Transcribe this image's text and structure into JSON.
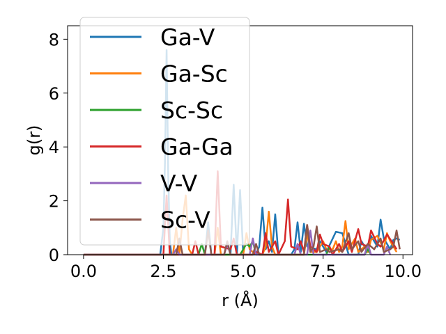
{
  "chart_data": {
    "type": "line",
    "xlabel": "r (Å)",
    "ylabel": "g(r)",
    "xlim": [
      -0.5,
      10.3
    ],
    "ylim": [
      0,
      8.5
    ],
    "xticks": [
      0.0,
      2.5,
      5.0,
      7.5,
      10.0
    ],
    "xtick_labels": [
      "0.0",
      "2.5",
      "5.0",
      "7.5",
      "10.0"
    ],
    "yticks": [
      0,
      2,
      4,
      6,
      8
    ],
    "ytick_labels": [
      "0",
      "2",
      "4",
      "6",
      "8"
    ],
    "grid": false,
    "legend": {
      "placement": "upper-left",
      "framealpha": 0.8
    },
    "series": [
      {
        "name": "Ga-V",
        "color": "#1f77b4",
        "points": [
          [
            0,
            0
          ],
          [
            2.4,
            0
          ],
          [
            2.5,
            1.0
          ],
          [
            2.55,
            3.5
          ],
          [
            2.6,
            7.6
          ],
          [
            2.65,
            3.0
          ],
          [
            2.7,
            0.5
          ],
          [
            2.75,
            0
          ],
          [
            3.8,
            0
          ],
          [
            3.9,
            1.2
          ],
          [
            4.0,
            0
          ],
          [
            4.6,
            0
          ],
          [
            4.7,
            2.6
          ],
          [
            4.8,
            0
          ],
          [
            4.9,
            2.4
          ],
          [
            5.0,
            0
          ],
          [
            5.4,
            0
          ],
          [
            5.5,
            0.3
          ],
          [
            5.6,
            1.75
          ],
          [
            5.7,
            0.2
          ],
          [
            5.8,
            0.5
          ],
          [
            5.9,
            0.1
          ],
          [
            6.0,
            1.5
          ],
          [
            6.1,
            0
          ],
          [
            6.5,
            0
          ],
          [
            6.6,
            0.2
          ],
          [
            6.7,
            1.2
          ],
          [
            6.8,
            0.1
          ],
          [
            6.9,
            1.15
          ],
          [
            7.0,
            0.3
          ],
          [
            7.3,
            0.2
          ],
          [
            7.4,
            0.5
          ],
          [
            7.6,
            0.1
          ],
          [
            7.9,
            0.85
          ],
          [
            8.1,
            0.8
          ],
          [
            8.3,
            0
          ],
          [
            8.6,
            0
          ],
          [
            8.7,
            0.5
          ],
          [
            8.9,
            0.1
          ],
          [
            9.0,
            0.7
          ],
          [
            9.2,
            0.3
          ],
          [
            9.3,
            1.3
          ],
          [
            9.4,
            0.6
          ],
          [
            9.6,
            0.2
          ],
          [
            9.7,
            0.55
          ],
          [
            9.8,
            0.6
          ],
          [
            9.9,
            0.55
          ]
        ]
      },
      {
        "name": "Ga-Sc",
        "color": "#ff7f0e",
        "points": [
          [
            0,
            0
          ],
          [
            2.8,
            0
          ],
          [
            2.9,
            1.0
          ],
          [
            3.0,
            0
          ],
          [
            3.1,
            1.3
          ],
          [
            3.2,
            2.2
          ],
          [
            3.3,
            0.2
          ],
          [
            3.4,
            0
          ],
          [
            4.1,
            0
          ],
          [
            4.2,
            1.0
          ],
          [
            4.3,
            0
          ],
          [
            5.0,
            0
          ],
          [
            5.1,
            0.8
          ],
          [
            5.2,
            0.2
          ],
          [
            5.4,
            0
          ],
          [
            5.6,
            0
          ],
          [
            5.7,
            0.3
          ],
          [
            5.8,
            1.6
          ],
          [
            5.9,
            0.3
          ],
          [
            6.0,
            0
          ],
          [
            6.9,
            0
          ],
          [
            7.0,
            0.8
          ],
          [
            7.1,
            0.1
          ],
          [
            7.3,
            0.1
          ],
          [
            7.5,
            0.5
          ],
          [
            7.6,
            0.2
          ],
          [
            7.8,
            0.2
          ],
          [
            7.9,
            0.5
          ],
          [
            8.0,
            0.1
          ],
          [
            8.1,
            0.3
          ],
          [
            8.2,
            1.25
          ],
          [
            8.3,
            0.2
          ],
          [
            8.5,
            0.6
          ],
          [
            8.6,
            0.1
          ],
          [
            8.8,
            0.3
          ],
          [
            8.9,
            0.1
          ],
          [
            9.0,
            0.55
          ],
          [
            9.2,
            0.7
          ],
          [
            9.4,
            0.2
          ],
          [
            9.5,
            0.8
          ],
          [
            9.6,
            0.5
          ],
          [
            9.7,
            0.3
          ],
          [
            9.8,
            0.1
          ]
        ]
      },
      {
        "name": "Sc-Sc",
        "color": "#2ca02c",
        "points": [
          [
            0,
            0
          ],
          [
            3.6,
            0
          ],
          [
            3.7,
            0.4
          ],
          [
            3.8,
            0
          ],
          [
            4.9,
            0
          ],
          [
            5.0,
            0.2
          ],
          [
            5.1,
            0.4
          ],
          [
            5.2,
            0.3
          ],
          [
            5.3,
            0.5
          ],
          [
            5.4,
            0
          ],
          [
            7.6,
            0
          ],
          [
            7.7,
            0.3
          ],
          [
            7.8,
            0
          ],
          [
            8.8,
            0
          ],
          [
            8.9,
            0.2
          ],
          [
            9.0,
            0
          ]
        ]
      },
      {
        "name": "Ga-Ga",
        "color": "#d62728",
        "points": [
          [
            0,
            0
          ],
          [
            2.5,
            0
          ],
          [
            2.6,
            2.2
          ],
          [
            2.7,
            0
          ],
          [
            3.4,
            0
          ],
          [
            3.5,
            0.5
          ],
          [
            3.6,
            0
          ],
          [
            4.1,
            0
          ],
          [
            4.2,
            3.1
          ],
          [
            4.3,
            0.3
          ],
          [
            4.6,
            0.2
          ],
          [
            4.7,
            0.6
          ],
          [
            4.8,
            0
          ],
          [
            5.3,
            0
          ],
          [
            5.4,
            0.1
          ],
          [
            5.6,
            0
          ],
          [
            5.7,
            0.8
          ],
          [
            5.8,
            0.1
          ],
          [
            6.0,
            0.5
          ],
          [
            6.1,
            0
          ],
          [
            6.3,
            0.5
          ],
          [
            6.4,
            2.05
          ],
          [
            6.5,
            0.3
          ],
          [
            6.7,
            0.2
          ],
          [
            6.8,
            0.5
          ],
          [
            6.9,
            0.1
          ],
          [
            7.0,
            1.1
          ],
          [
            7.1,
            0.3
          ],
          [
            7.3,
            0.1
          ],
          [
            7.4,
            0.75
          ],
          [
            7.5,
            0.4
          ],
          [
            7.7,
            0.3
          ],
          [
            7.8,
            0
          ],
          [
            8.0,
            0.4
          ],
          [
            8.1,
            0.1
          ],
          [
            8.3,
            0.5
          ],
          [
            8.4,
            0.1
          ],
          [
            8.6,
            0.95
          ],
          [
            8.7,
            0.4
          ],
          [
            8.9,
            0.3
          ],
          [
            9.0,
            0.9
          ],
          [
            9.2,
            0.4
          ],
          [
            9.3,
            0.3
          ],
          [
            9.5,
            0.75
          ],
          [
            9.7,
            0.4
          ],
          [
            9.8,
            0.2
          ]
        ]
      },
      {
        "name": "V-V",
        "color": "#9467bd",
        "points": [
          [
            0,
            0
          ],
          [
            2.8,
            0
          ],
          [
            2.9,
            0.2
          ],
          [
            3.0,
            0
          ],
          [
            4.4,
            0
          ],
          [
            4.5,
            0.4
          ],
          [
            4.6,
            0
          ],
          [
            5.2,
            0
          ],
          [
            5.3,
            0.6
          ],
          [
            5.4,
            0
          ],
          [
            6.6,
            0
          ],
          [
            6.7,
            0.4
          ],
          [
            6.8,
            0
          ],
          [
            7.0,
            0
          ],
          [
            7.1,
            0.9
          ],
          [
            7.2,
            0
          ],
          [
            8.8,
            0
          ],
          [
            8.9,
            0.4
          ],
          [
            9.0,
            0
          ],
          [
            9.4,
            0
          ],
          [
            9.5,
            0.3
          ],
          [
            9.6,
            0
          ]
        ]
      },
      {
        "name": "Sc-V",
        "color": "#8c564b",
        "points": [
          [
            0,
            0
          ],
          [
            2.9,
            0
          ],
          [
            3.0,
            0.6
          ],
          [
            3.1,
            0
          ],
          [
            3.8,
            0
          ],
          [
            3.9,
            0.9
          ],
          [
            4.0,
            0
          ],
          [
            4.4,
            0
          ],
          [
            4.5,
            0.5
          ],
          [
            4.6,
            0
          ],
          [
            5.3,
            0
          ],
          [
            5.4,
            0.4
          ],
          [
            5.5,
            0
          ],
          [
            6.9,
            0
          ],
          [
            7.0,
            1.1
          ],
          [
            7.1,
            0.1
          ],
          [
            7.2,
            0.3
          ],
          [
            7.3,
            1.05
          ],
          [
            7.4,
            0.1
          ],
          [
            7.6,
            0.2
          ],
          [
            7.7,
            0.1
          ],
          [
            8.0,
            0.2
          ],
          [
            8.1,
            0.1
          ],
          [
            8.3,
            0.8
          ],
          [
            8.4,
            0.2
          ],
          [
            8.6,
            0.5
          ],
          [
            8.7,
            0.1
          ],
          [
            8.9,
            0.4
          ],
          [
            9.1,
            0.2
          ],
          [
            9.3,
            0.6
          ],
          [
            9.4,
            0.1
          ],
          [
            9.6,
            0.2
          ],
          [
            9.7,
            0.3
          ],
          [
            9.8,
            0.9
          ],
          [
            9.9,
            0.2
          ]
        ]
      }
    ]
  }
}
